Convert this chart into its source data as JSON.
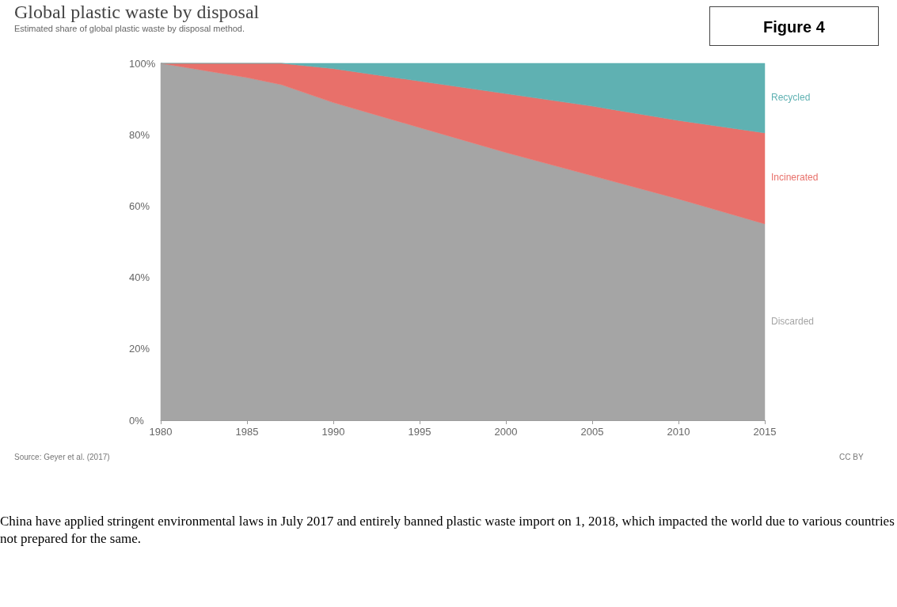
{
  "chart_data": {
    "type": "area",
    "stacked": true,
    "title": "Global plastic waste by disposal",
    "subtitle": "Estimated share of global plastic waste by disposal method.",
    "x": [
      1980,
      1985,
      1987,
      1990,
      1995,
      2000,
      2005,
      2010,
      2015
    ],
    "series": [
      {
        "name": "Discarded",
        "color": "#a5a5a5",
        "values": [
          100,
          96,
          94,
          89,
          82,
          75,
          68.5,
          62,
          55
        ]
      },
      {
        "name": "Incinerated",
        "color": "#e8706a",
        "values": [
          0,
          4,
          6,
          9.5,
          13,
          16.5,
          19.5,
          22,
          25.5
        ]
      },
      {
        "name": "Recycled",
        "color": "#5fb1b2",
        "values": [
          0,
          0,
          0,
          1.5,
          5,
          8.5,
          12,
          16,
          19.5
        ]
      }
    ],
    "xlim": [
      1980,
      2015
    ],
    "xticks": [
      1980,
      1985,
      1990,
      1995,
      2000,
      2005,
      2010,
      2015
    ],
    "ylim": [
      0,
      100
    ],
    "yticks": [
      {
        "value": 0,
        "label": "0%"
      },
      {
        "value": 20,
        "label": "20%"
      },
      {
        "value": 40,
        "label": "40%"
      },
      {
        "value": 60,
        "label": "60%"
      },
      {
        "value": 80,
        "label": "80%"
      },
      {
        "value": 100,
        "label": "100%"
      }
    ],
    "annotations": [
      "Figure 4",
      "Source: Geyer et al. (2017)",
      "CC BY",
      "China have applied stringent environmental laws in July 2017 and entirely banned plastic waste import on 1, 2018, which impacted the world due to various countries not prepared for the same."
    ]
  }
}
